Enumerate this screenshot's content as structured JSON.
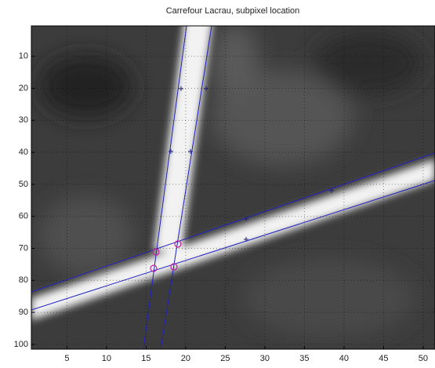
{
  "chart_data": {
    "type": "image",
    "title": "Carrefour Lacrau, subpixel location",
    "xlim": [
      0.5,
      51.5
    ],
    "ylim": [
      0.5,
      101.5
    ],
    "y_reversed": true,
    "xticks": [
      5,
      10,
      15,
      20,
      25,
      30,
      35,
      40,
      45,
      50
    ],
    "yticks": [
      10,
      20,
      30,
      40,
      50,
      60,
      70,
      80,
      90,
      100
    ],
    "grid": true
  }
}
